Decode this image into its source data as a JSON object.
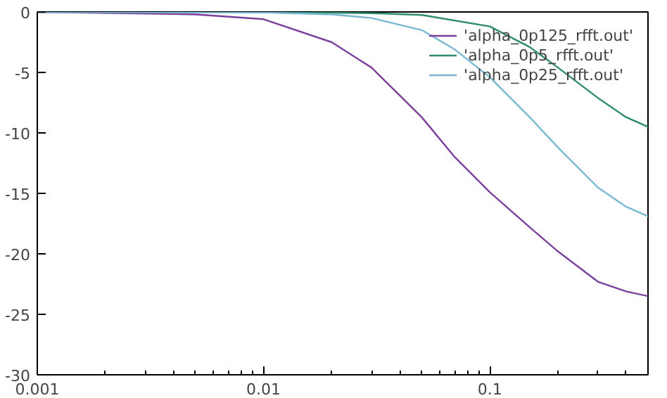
{
  "chart_data": {
    "type": "line",
    "xlim": [
      0.001,
      0.5
    ],
    "ylim": [
      -30,
      0
    ],
    "log": "x",
    "grid": false,
    "legend": "top right",
    "marker": "none",
    "line_style": "solid",
    "xticks": [
      0.001,
      0.01,
      0.1
    ],
    "yticks": [
      -30,
      -25,
      -20,
      -15,
      -10,
      -5,
      0
    ],
    "series": [
      {
        "name": "'alpha_0p125_rfft.out'",
        "color": "#7b3f9e",
        "x": [
          0.001,
          0.005,
          0.01,
          0.02,
          0.03,
          0.05,
          0.07,
          0.1,
          0.15,
          0.2,
          0.3,
          0.4,
          0.5
        ],
        "values": [
          0,
          -0.2,
          -0.6,
          -2.5,
          -4.6,
          -8.7,
          -12,
          -14.9,
          -17.8,
          -19.8,
          -22.3,
          -23.1,
          -23.5
        ]
      },
      {
        "name": "'alpha_0p5_rfft.out'",
        "color": "#2e8b6e",
        "x": [
          0.001,
          0.01,
          0.03,
          0.05,
          0.1,
          0.15,
          0.2,
          0.3,
          0.4,
          0.5
        ],
        "values": [
          0,
          0,
          -0.1,
          -0.25,
          -1.2,
          -2.9,
          -4.6,
          -7.1,
          -8.7,
          -9.5
        ]
      },
      {
        "name": "'alpha_0p25_rfft.out'",
        "color": "#78b8d4",
        "x": [
          0.001,
          0.01,
          0.02,
          0.03,
          0.05,
          0.07,
          0.1,
          0.15,
          0.2,
          0.3,
          0.4,
          0.5
        ],
        "values": [
          0,
          -0.05,
          -0.2,
          -0.5,
          -1.5,
          -3.1,
          -5.4,
          -8.7,
          -11.2,
          -14.5,
          -16.1,
          -16.9
        ]
      }
    ]
  }
}
